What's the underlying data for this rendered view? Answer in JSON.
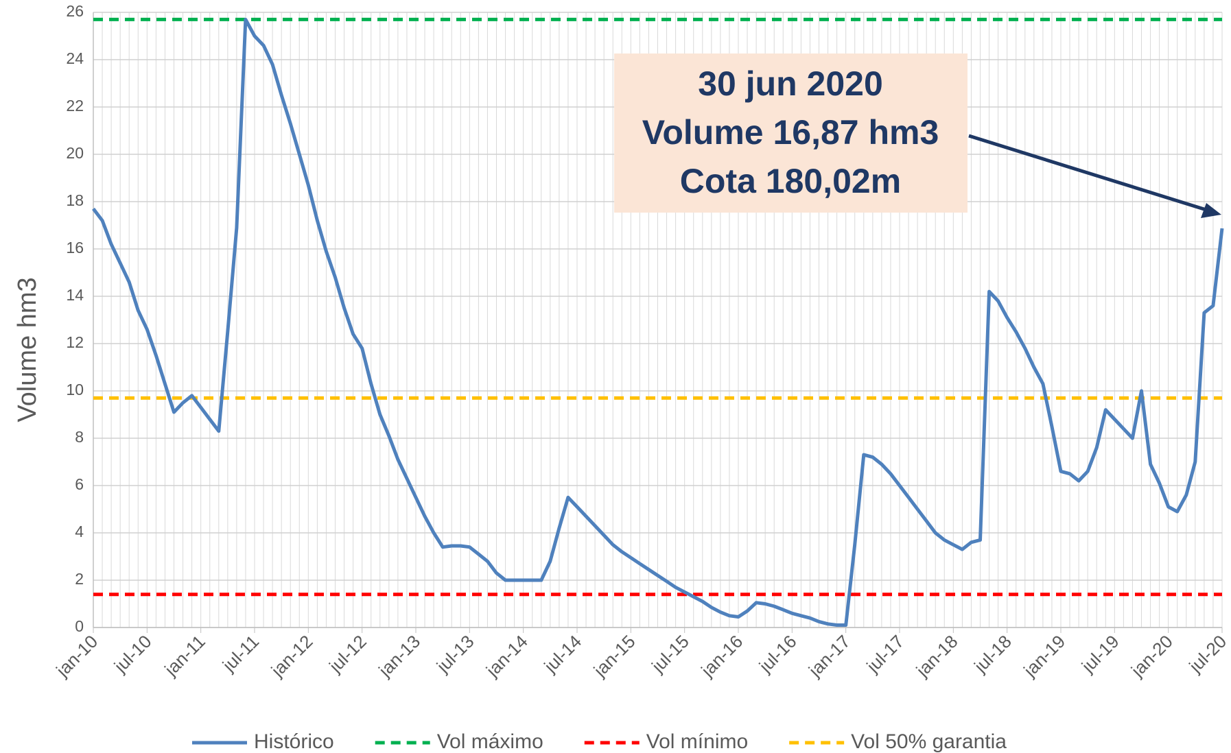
{
  "chart_data": {
    "type": "line",
    "y_label": "Volume  hm3",
    "annotation": [
      "30 jun 2020",
      "Volume 16,87 hm3",
      "Cota 180,02m"
    ],
    "categories": [
      "jan-10",
      null,
      null,
      null,
      null,
      null,
      "jul-10",
      null,
      null,
      null,
      null,
      null,
      "jan-11",
      null,
      null,
      null,
      null,
      null,
      "jul-11",
      null,
      null,
      null,
      null,
      null,
      "jan-12",
      null,
      null,
      null,
      null,
      null,
      "jul-12",
      null,
      null,
      null,
      null,
      null,
      "jan-13",
      null,
      null,
      null,
      null,
      null,
      "jul-13",
      null,
      null,
      null,
      null,
      null,
      "jan-14",
      null,
      null,
      null,
      null,
      null,
      "jul-14",
      null,
      null,
      null,
      null,
      null,
      "jan-15",
      null,
      null,
      null,
      null,
      null,
      "jul-15",
      null,
      null,
      null,
      null,
      null,
      "jan-16",
      null,
      null,
      null,
      null,
      null,
      "jul-16",
      null,
      null,
      null,
      null,
      null,
      "jan-17",
      null,
      null,
      null,
      null,
      null,
      "jul-17",
      null,
      null,
      null,
      null,
      null,
      "jan-18",
      null,
      null,
      null,
      null,
      null,
      "jul-18",
      null,
      null,
      null,
      null,
      null,
      "jan-19",
      null,
      null,
      null,
      null,
      null,
      "jul-19",
      null,
      null,
      null,
      null,
      null,
      "jan-20",
      null,
      null,
      null,
      null,
      null,
      "jul-20"
    ],
    "series": [
      {
        "name": "Histórico",
        "color": "#4f81bd",
        "values": [
          17.7,
          17.2,
          16.2,
          15.4,
          14.6,
          13.4,
          12.6,
          11.5,
          10.3,
          9.1,
          9.5,
          9.8,
          9.3,
          8.8,
          8.3,
          12.5,
          16.9,
          25.7,
          25.0,
          24.6,
          23.8,
          22.5,
          21.3,
          20.0,
          18.7,
          17.2,
          15.9,
          14.8,
          13.5,
          12.4,
          11.8,
          10.3,
          9.0,
          8.1,
          7.1,
          6.3,
          5.5,
          4.7,
          4.0,
          3.4,
          3.45,
          3.45,
          3.4,
          3.1,
          2.8,
          2.3,
          2.0,
          2.0,
          2.0,
          2.0,
          2.0,
          2.8,
          4.2,
          5.5,
          5.1,
          4.7,
          4.3,
          3.9,
          3.5,
          3.2,
          2.95,
          2.7,
          2.45,
          2.2,
          1.95,
          1.7,
          1.5,
          1.3,
          1.1,
          0.85,
          0.65,
          0.5,
          0.45,
          0.7,
          1.05,
          1.0,
          0.9,
          0.75,
          0.6,
          0.5,
          0.4,
          0.25,
          0.15,
          0.1,
          0.1,
          3.5,
          7.3,
          7.2,
          6.9,
          6.5,
          6.0,
          5.5,
          5.0,
          4.5,
          4.0,
          3.7,
          3.5,
          3.3,
          3.6,
          3.7,
          14.2,
          13.8,
          13.1,
          12.5,
          11.8,
          11.0,
          10.3,
          8.5,
          6.6,
          6.5,
          6.2,
          6.6,
          7.6,
          9.2,
          8.8,
          8.4,
          8.0,
          10.0,
          6.9,
          6.1,
          5.1,
          4.9,
          5.6,
          7.0,
          13.3,
          13.6,
          16.87
        ]
      }
    ],
    "hlines": [
      {
        "name": "Vol máximo",
        "color": "#00b050",
        "value": 25.7
      },
      {
        "name": "Vol mínimo",
        "color": "#ff0000",
        "value": 1.4
      },
      {
        "name": "Vol 50% garantia",
        "color": "#ffc000",
        "value": 9.7
      }
    ],
    "ylim": [
      0,
      26
    ],
    "yticks": [
      0,
      2,
      4,
      6,
      8,
      10,
      12,
      14,
      16,
      18,
      20,
      22,
      24,
      26
    ],
    "grid": true
  }
}
